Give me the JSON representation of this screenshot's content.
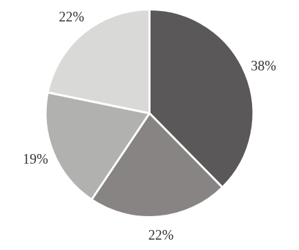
{
  "chart_data": {
    "type": "pie",
    "values": [
      38,
      22,
      19,
      22
    ],
    "value_labels": [
      "38%",
      "22%",
      "19%",
      "22%"
    ],
    "colors": [
      "#5b5859",
      "#878483",
      "#b1b1af",
      "#d9d9d7"
    ],
    "data_labels": true
  }
}
